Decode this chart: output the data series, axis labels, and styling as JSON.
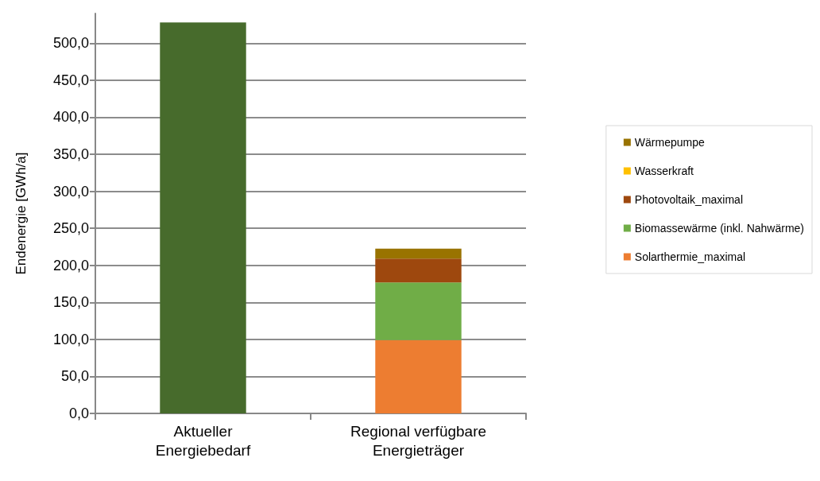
{
  "chart_data": {
    "type": "bar",
    "stacked": true,
    "ylabel": "Endenergie [GWh/a]",
    "categories": [
      "Aktueller\nEnergiebedarf",
      "Regional verfügbare\nEnergieträger"
    ],
    "series": [
      {
        "color": "#476b2c",
        "values": [
          528,
          null
        ]
      },
      {
        "name": "Solarthermie_maximal",
        "color": "#ed7d31",
        "values": [
          null,
          99
        ]
      },
      {
        "name": "Biomassewärme (inkl. Nahwärme)",
        "color": "#70ad47",
        "values": [
          null,
          78
        ]
      },
      {
        "name": "Photovoltaik_maximal",
        "color": "#9e480e",
        "values": [
          null,
          32
        ]
      },
      {
        "name": "Wasserkraft",
        "color": "#ffc000",
        "values": [
          null,
          0
        ]
      },
      {
        "name": "Wärmepumpe",
        "color": "#997300",
        "values": [
          null,
          13.5
        ]
      }
    ],
    "ylim": [
      0,
      540
    ],
    "yticks": [
      {
        "value": 0,
        "label": "0,0"
      },
      {
        "value": 50,
        "label": "50,0"
      },
      {
        "value": 100,
        "label": "100,0"
      },
      {
        "value": 150,
        "label": "150,0"
      },
      {
        "value": 200,
        "label": "200,0"
      },
      {
        "value": 250,
        "label": "250,0"
      },
      {
        "value": 300,
        "label": "300,0"
      },
      {
        "value": 350,
        "label": "350,0"
      },
      {
        "value": 400,
        "label": "400,0"
      },
      {
        "value": 450,
        "label": "450,0"
      },
      {
        "value": 500,
        "label": "500,0"
      }
    ],
    "grid": "y",
    "legend": "right"
  }
}
